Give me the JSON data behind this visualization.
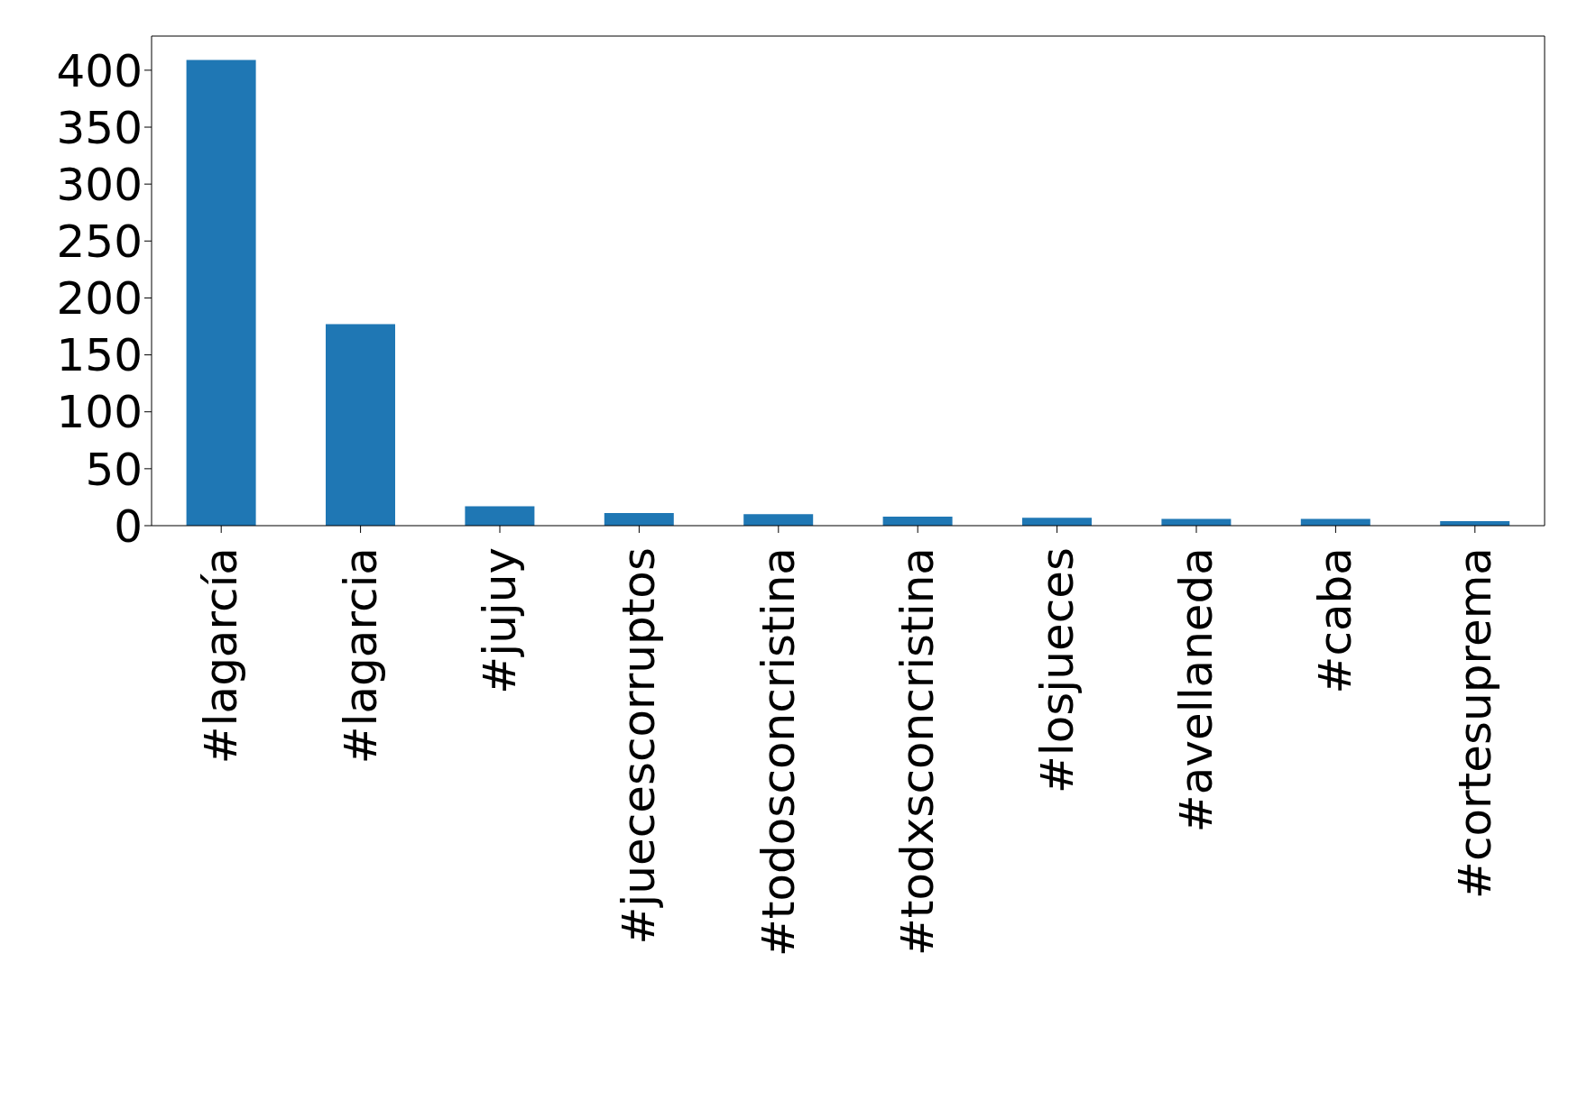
{
  "chart_data": {
    "type": "bar",
    "categories": [
      "#lagarcía",
      "#lagarcia",
      "#jujuy",
      "#juecescorruptos",
      "#todosconcristina",
      "#todxsconcristina",
      "#losjueces",
      "#avellaneda",
      "#caba",
      "#cortesuprema"
    ],
    "values": [
      409,
      177,
      17,
      11,
      10,
      8,
      7,
      6,
      6,
      4
    ],
    "color": "#1f77b4",
    "ylim": [
      0,
      430
    ],
    "yticks": [
      0,
      50,
      100,
      150,
      200,
      250,
      300,
      350,
      400
    ],
    "grid": false,
    "legend": false
  }
}
